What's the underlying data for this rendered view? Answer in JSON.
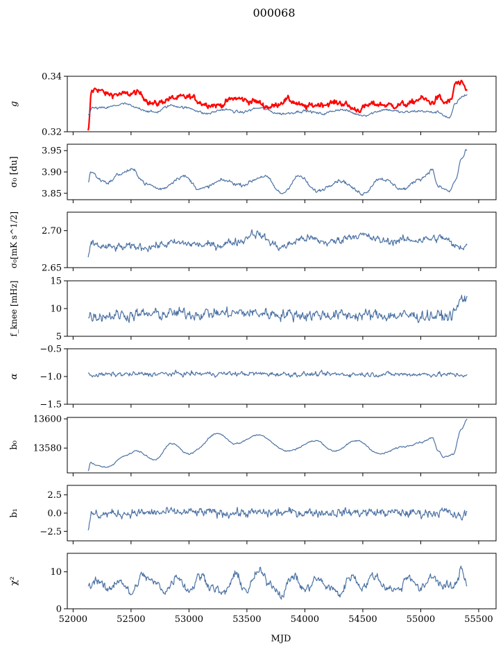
{
  "figure": {
    "title": "000068",
    "xlabel": "MJD"
  },
  "chart_data": {
    "type": "line",
    "title": "000068",
    "xlabel": "MJD",
    "xlim": [
      51950,
      55650
    ],
    "xticks": [
      52000,
      52500,
      53000,
      53500,
      54000,
      54500,
      55000,
      55500
    ],
    "xtick_labels": [
      "52000",
      "52500",
      "53000",
      "53500",
      "54000",
      "54500",
      "55000",
      "55500"
    ],
    "x_range_data": [
      52130,
      55400
    ],
    "grid": false,
    "colors": {
      "blue": "#4c72a4",
      "red": "#ff0000"
    },
    "panels": [
      {
        "id": "g",
        "ylabel": "g",
        "ylim": [
          0.32,
          0.34
        ],
        "yticks": [
          0.32,
          0.34
        ],
        "ytick_labels": [
          "0.32",
          "0.34"
        ],
        "series": [
          {
            "color": "#ff0000",
            "width": 2.2,
            "noise": 0.0009,
            "x": [
              52130,
              52160,
              52200,
              52300,
              52450,
              52550,
              52700,
              52850,
              53000,
              53150,
              53250,
              53400,
              53550,
              53700,
              53850,
              54000,
              54150,
              54300,
              54450,
              54600,
              54750,
              54900,
              55000,
              55100,
              55150,
              55200,
              55260,
              55300,
              55350,
              55400
            ],
            "y": [
              0.32,
              0.3345,
              0.3355,
              0.3335,
              0.3335,
              0.334,
              0.33,
              0.332,
              0.3325,
              0.33,
              0.3295,
              0.332,
              0.331,
              0.329,
              0.3315,
              0.329,
              0.33,
              0.3305,
              0.328,
              0.33,
              0.3295,
              0.33,
              0.332,
              0.3305,
              0.3325,
              0.3305,
              0.331,
              0.3375,
              0.337,
              0.335
            ]
          },
          {
            "color": "#4c72a4",
            "width": 1.2,
            "noise": 0.0004,
            "x": [
              52130,
              52160,
              52250,
              52450,
              52550,
              52700,
              52850,
              53000,
              53150,
              53300,
              53450,
              53600,
              53800,
              54000,
              54150,
              54300,
              54500,
              54700,
              54850,
              55000,
              55100,
              55150,
              55250,
              55300,
              55350,
              55400
            ],
            "y": [
              0.326,
              0.3285,
              0.3285,
              0.33,
              0.3285,
              0.327,
              0.3295,
              0.3285,
              0.3265,
              0.328,
              0.327,
              0.3285,
              0.3265,
              0.3275,
              0.3265,
              0.328,
              0.326,
              0.328,
              0.327,
              0.3275,
              0.327,
              0.327,
              0.325,
              0.33,
              0.3325,
              0.3335
            ]
          }
        ]
      },
      {
        "id": "sigma0-du",
        "ylabel": "σ₀ [du]",
        "ylim": [
          3.835,
          3.965
        ],
        "yticks": [
          3.85,
          3.9,
          3.95
        ],
        "ytick_labels": [
          "3.85",
          "3.90",
          "3.95"
        ],
        "series": [
          {
            "color": "#4c72a4",
            "width": 1.2,
            "noise": 0.0035,
            "x": [
              52130,
              52150,
              52250,
              52300,
              52400,
              52500,
              52650,
              52750,
              52950,
              53100,
              53300,
              53450,
              53650,
              53800,
              53950,
              54100,
              54300,
              54500,
              54650,
              54850,
              55000,
              55100,
              55150,
              55250,
              55300,
              55350,
              55400
            ],
            "y": [
              3.875,
              3.9,
              3.88,
              3.875,
              3.895,
              3.905,
              3.87,
              3.86,
              3.89,
              3.86,
              3.88,
              3.87,
              3.89,
              3.85,
              3.89,
              3.855,
              3.88,
              3.85,
              3.885,
              3.86,
              3.885,
              3.905,
              3.865,
              3.855,
              3.88,
              3.93,
              3.95
            ]
          }
        ]
      },
      {
        "id": "sigma0-mks",
        "ylabel": "σ₀[mK s^1/2]",
        "ylim": [
          2.65,
          2.725
        ],
        "yticks": [
          2.65,
          2.7
        ],
        "ytick_labels": [
          "2.65",
          "2.70"
        ],
        "series": [
          {
            "color": "#4c72a4",
            "width": 1.2,
            "noise": 0.0045,
            "x": [
              52130,
              52160,
              52300,
              52600,
              52900,
              53200,
              53450,
              53550,
              53800,
              54000,
              54200,
              54450,
              54700,
              55000,
              55200,
              55300,
              55400
            ],
            "y": [
              2.663,
              2.682,
              2.677,
              2.678,
              2.683,
              2.68,
              2.686,
              2.697,
              2.678,
              2.69,
              2.684,
              2.694,
              2.686,
              2.688,
              2.69,
              2.678,
              2.68
            ]
          }
        ]
      },
      {
        "id": "f-knee",
        "ylabel": "f_knee [mHz]",
        "ylim": [
          5,
          15
        ],
        "yticks": [
          5,
          10,
          15
        ],
        "ytick_labels": [
          "5",
          "10",
          "15"
        ],
        "series": [
          {
            "color": "#4c72a4",
            "width": 1.2,
            "noise": 0.85,
            "x": [
              52130,
              52500,
              53000,
              53500,
              54000,
              54500,
              55000,
              55250,
              55300,
              55350,
              55400
            ],
            "y": [
              8.7,
              8.9,
              9.1,
              9.2,
              8.9,
              8.8,
              8.7,
              8.6,
              9.5,
              11.8,
              12.0
            ]
          }
        ]
      },
      {
        "id": "alpha",
        "ylabel": "α",
        "ylim": [
          -1.5,
          -0.5
        ],
        "yticks": [
          -1.5,
          -1.0,
          -0.5
        ],
        "ytick_labels": [
          "−1.5",
          "−1.0",
          "−0.5"
        ],
        "series": [
          {
            "color": "#4c72a4",
            "width": 1.2,
            "noise": 0.035,
            "x": [
              52130,
              52500,
              53000,
              53500,
              54000,
              54500,
              55000,
              55400
            ],
            "y": [
              -0.97,
              -0.96,
              -0.95,
              -0.95,
              -0.96,
              -0.96,
              -0.96,
              -0.97
            ]
          }
        ]
      },
      {
        "id": "b0",
        "ylabel": "b₀",
        "ylim": [
          13563,
          13601
        ],
        "yticks": [
          13580,
          13600
        ],
        "ytick_labels": [
          "13580",
          "13600"
        ],
        "series": [
          {
            "color": "#4c72a4",
            "width": 1.2,
            "noise": 0.45,
            "x": [
              52130,
              52150,
              52200,
              52300,
              52450,
              52550,
              52700,
              52850,
              53000,
              53250,
              53400,
              53600,
              53850,
              54100,
              54250,
              54450,
              54650,
              54850,
              55000,
              55100,
              55150,
              55200,
              55280,
              55350,
              55400
            ],
            "y": [
              13564,
              13570,
              13568,
              13567,
              13575,
              13578,
              13572,
              13583,
              13576,
              13590,
              13583,
              13589,
              13578,
              13585,
              13578,
              13585,
              13576,
              13581,
              13584,
              13587,
              13578,
              13574,
              13576,
              13593,
              13600
            ]
          }
        ]
      },
      {
        "id": "b1",
        "ylabel": "b₁",
        "ylim": [
          -3.8,
          3.8
        ],
        "yticks": [
          -2.5,
          0.0,
          2.5
        ],
        "ytick_labels": [
          "−2.5",
          "0.0",
          "2.5"
        ],
        "series": [
          {
            "color": "#4c72a4",
            "width": 1.2,
            "noise": 0.5,
            "x": [
              52130,
              52160,
              52500,
              53000,
              53500,
              54000,
              54500,
              55000,
              55200,
              55350,
              55400
            ],
            "y": [
              -2.6,
              -0.2,
              0.0,
              0.1,
              0.0,
              0.1,
              0.1,
              0.0,
              0.2,
              -0.6,
              0.1
            ]
          }
        ]
      },
      {
        "id": "chi2",
        "ylabel": "χ²",
        "ylim": [
          0,
          15
        ],
        "yticks": [
          0,
          10
        ],
        "ytick_labels": [
          "0",
          "10"
        ],
        "series": [
          {
            "color": "#4c72a4",
            "width": 1.2,
            "noise": 1.0,
            "x": [
              52130,
              52200,
              52300,
              52400,
              52500,
              52600,
              52700,
              52800,
              52900,
              53000,
              53100,
              53200,
              53300,
              53400,
              53500,
              53600,
              53700,
              53800,
              53900,
              54000,
              54100,
              54200,
              54300,
              54400,
              54500,
              54600,
              54700,
              54800,
              54900,
              55000,
              55100,
              55200,
              55300,
              55350,
              55400
            ],
            "y": [
              6,
              8,
              5,
              8,
              4,
              9,
              7,
              5,
              9,
              5,
              9,
              6,
              4,
              9,
              5,
              10,
              7,
              4,
              9,
              5,
              8,
              6,
              4,
              9,
              6,
              9,
              6,
              5,
              9,
              5,
              9,
              6,
              6,
              11,
              7
            ]
          }
        ]
      }
    ]
  }
}
